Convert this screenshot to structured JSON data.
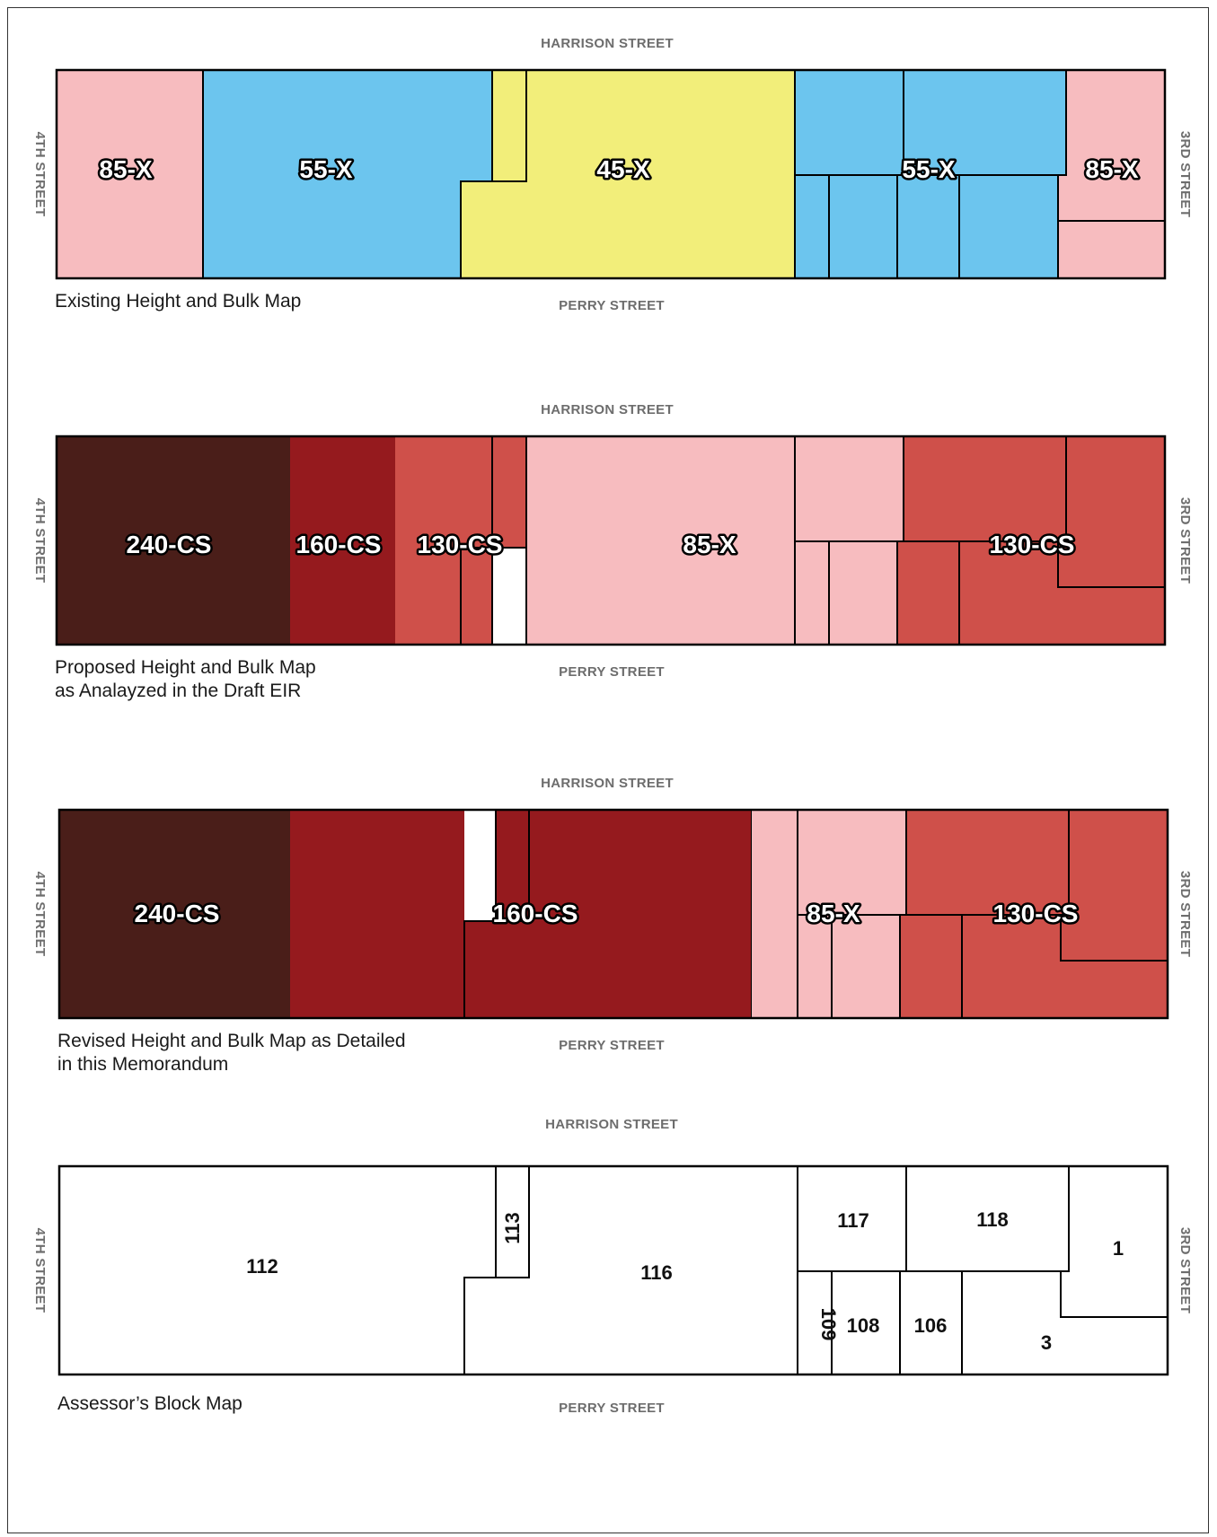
{
  "colors": {
    "pink_85x": "#f7bcbf",
    "blue_55x": "#6cc5ee",
    "yellow_45x": "#f2ee7a",
    "dark_240cs": "#4a1e19",
    "red_160cs": "#951a1e",
    "red_130cs": "#cf504a",
    "parcel_white": "#ffffff"
  },
  "streets": {
    "north": "HARRISON STREET",
    "south": "PERRY STREET",
    "west": "4TH STREET",
    "east": "3RD STREET"
  },
  "maps": [
    {
      "id": "existing",
      "caption": [
        "Existing Height and Bulk Map"
      ],
      "labels": [
        "85-X",
        "55-X",
        "45-X",
        "55-X",
        "85-X"
      ]
    },
    {
      "id": "proposed",
      "caption": [
        "Proposed Height and Bulk Map",
        "as Analayzed in the Draft EIR"
      ],
      "labels": [
        "240-CS",
        "160-CS",
        "130-CS",
        "85-X",
        "130-CS"
      ]
    },
    {
      "id": "revised",
      "caption": [
        "Revised Height and Bulk Map as Detailed",
        "in this Memorandum"
      ],
      "labels": [
        "240-CS",
        "160-CS",
        "85-X",
        "130-CS"
      ]
    },
    {
      "id": "assessor",
      "caption": [
        "Assessor’s Block Map"
      ],
      "labels": [
        "112",
        "113",
        "116",
        "117",
        "118",
        "1",
        "109",
        "108",
        "106",
        "3"
      ]
    }
  ]
}
